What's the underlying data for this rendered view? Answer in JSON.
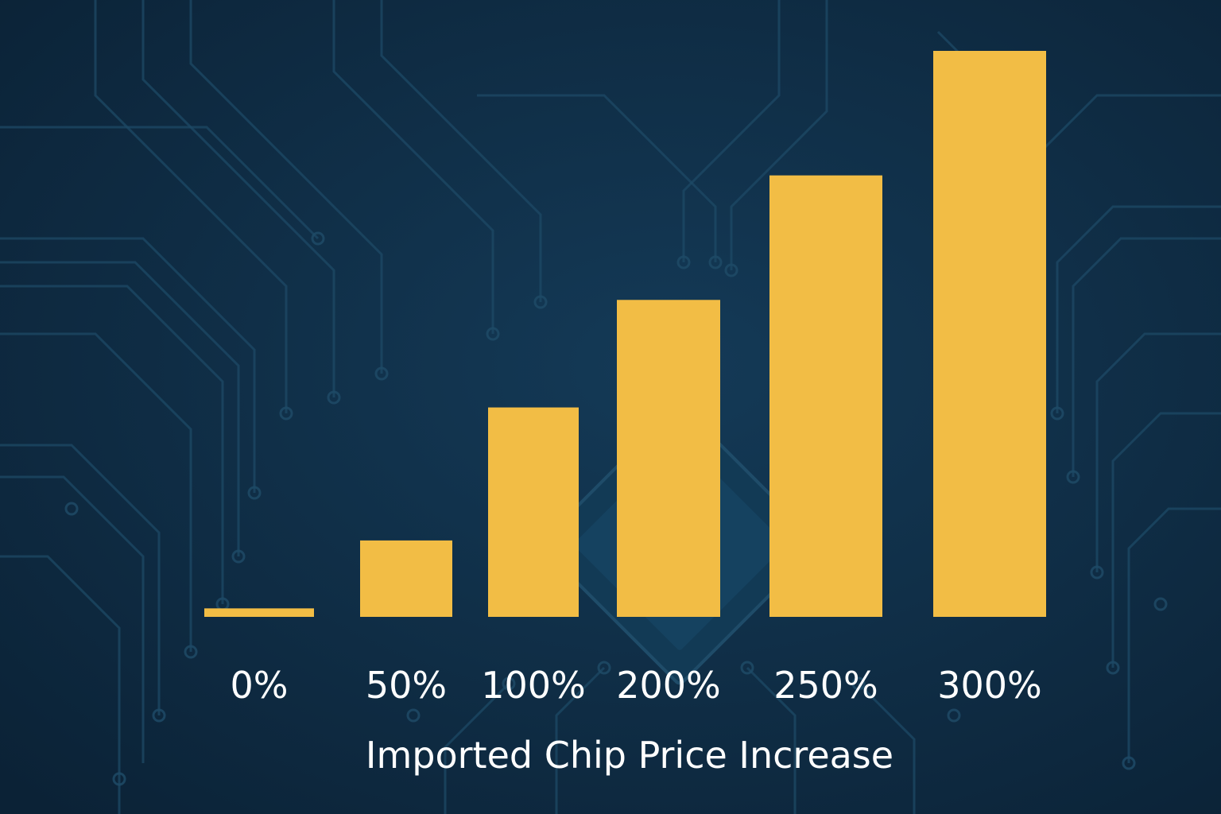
{
  "chart_data": {
    "type": "bar",
    "title": "",
    "xlabel": "Imported Chip Price Increase",
    "ylabel": "",
    "categories": [
      "0%",
      "50%",
      "100%",
      "200%",
      "250%",
      "300%"
    ],
    "series": [
      {
        "values": [
          1.5,
          13.5,
          37,
          56,
          78,
          100
        ]
      }
    ],
    "ylim": [
      0,
      100
    ],
    "grid": false,
    "legend": "none",
    "y_axis_shown": false
  },
  "colors": {
    "background": "#0d2a42",
    "circuit_trace": "#1e4a66",
    "chip": "#123a55",
    "bar": "#f2bd45",
    "text": "#ffffff"
  }
}
